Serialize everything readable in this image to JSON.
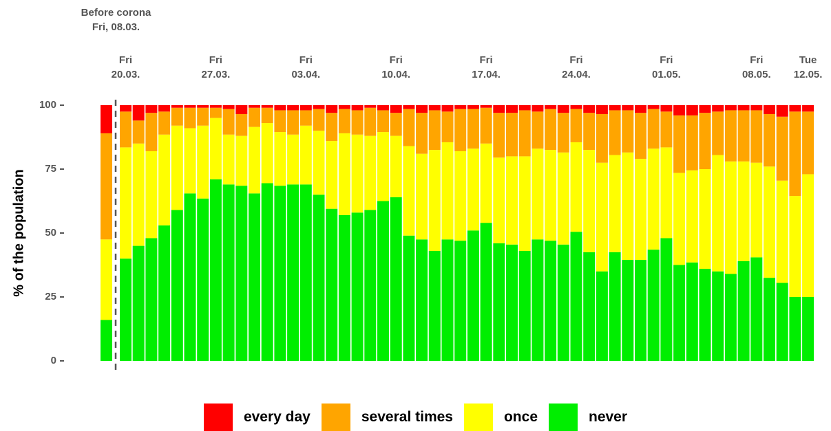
{
  "chart_data": {
    "type": "bar",
    "stacked": true,
    "y_label": "% of the population",
    "ylim": [
      0,
      100
    ],
    "yticks": [
      0,
      25,
      50,
      75,
      100
    ],
    "grid": false,
    "legend": "bottom",
    "categories": [
      "Before corona\nFri, 08.03.",
      "Fri\n20.03.",
      null,
      null,
      null,
      null,
      null,
      null,
      "Fri\n27.03.",
      null,
      null,
      null,
      null,
      null,
      null,
      "Fri\n03.04.",
      null,
      null,
      null,
      null,
      null,
      null,
      "Fri\n10.04.",
      null,
      null,
      null,
      null,
      null,
      null,
      "Fri\n17.04.",
      null,
      null,
      null,
      null,
      null,
      null,
      "Fri\n24.04.",
      null,
      null,
      null,
      null,
      null,
      null,
      "Fri\n01.05.",
      null,
      null,
      null,
      null,
      null,
      null,
      "Fri\n08.05.",
      null,
      null,
      null,
      "Tue\n12.05."
    ],
    "series": [
      {
        "name": "every day",
        "color": "#ff0000",
        "values": [
          11,
          2.5,
          6,
          3,
          2.5,
          1,
          1,
          1,
          1,
          1.5,
          3.5,
          1,
          1,
          2,
          2,
          2,
          1.5,
          3,
          1.5,
          2,
          1,
          2,
          3,
          1.5,
          3,
          2,
          2.5,
          1.5,
          1.5,
          1,
          3,
          3,
          2,
          2.5,
          1.5,
          3,
          1.5,
          3,
          3.5,
          2,
          2,
          3,
          1.5,
          2.5,
          4,
          4,
          3,
          2.5,
          2,
          2,
          2,
          3.5,
          4.5,
          2.5,
          2.5
        ]
      },
      {
        "name": "several times",
        "color": "#ffa500",
        "values": [
          41.5,
          14,
          9,
          15,
          9,
          7,
          8,
          7,
          4,
          10,
          8.5,
          7.5,
          6,
          8.5,
          9.5,
          6,
          8.5,
          11,
          9.5,
          9.5,
          11,
          8.5,
          9,
          14.5,
          16,
          15.5,
          12,
          16.5,
          15.5,
          14,
          17.5,
          17,
          18,
          14.5,
          16,
          15.5,
          13,
          14.5,
          19,
          17.5,
          16.5,
          18,
          15.5,
          14,
          22.5,
          21.5,
          22,
          17,
          20,
          20,
          20.5,
          20.5,
          25,
          33,
          24.5
        ]
      },
      {
        "name": "once",
        "color": "#ffff00",
        "values": [
          31.5,
          43.5,
          40,
          34,
          35.5,
          33,
          25.5,
          28.5,
          24,
          19.5,
          19.5,
          26,
          23.5,
          21,
          19.5,
          23,
          25,
          26.5,
          32,
          30.5,
          29,
          27,
          24,
          35,
          33.5,
          39.5,
          38,
          35,
          32,
          31,
          33.5,
          34.5,
          37,
          35.5,
          35.5,
          36,
          35,
          40,
          42.5,
          38,
          42,
          39.5,
          39.5,
          35.5,
          36,
          36,
          39,
          45.5,
          44,
          39,
          37,
          43.5,
          40,
          39.5,
          48
        ]
      },
      {
        "name": "never",
        "color": "#00ee00",
        "values": [
          16,
          40,
          45,
          48,
          53,
          59,
          65.5,
          63.5,
          71,
          69,
          68.5,
          65.5,
          69.5,
          68.5,
          69,
          69,
          65,
          59.5,
          57,
          58,
          59,
          62.5,
          64,
          49,
          47.5,
          43,
          47.5,
          47,
          51,
          54,
          46,
          45.5,
          43,
          47.5,
          47,
          45.5,
          50.5,
          42.5,
          35,
          42.5,
          39.5,
          39.5,
          43.5,
          48,
          37.5,
          38.5,
          36,
          35,
          34,
          39,
          40.5,
          32.5,
          30.5,
          25,
          25
        ]
      }
    ]
  }
}
